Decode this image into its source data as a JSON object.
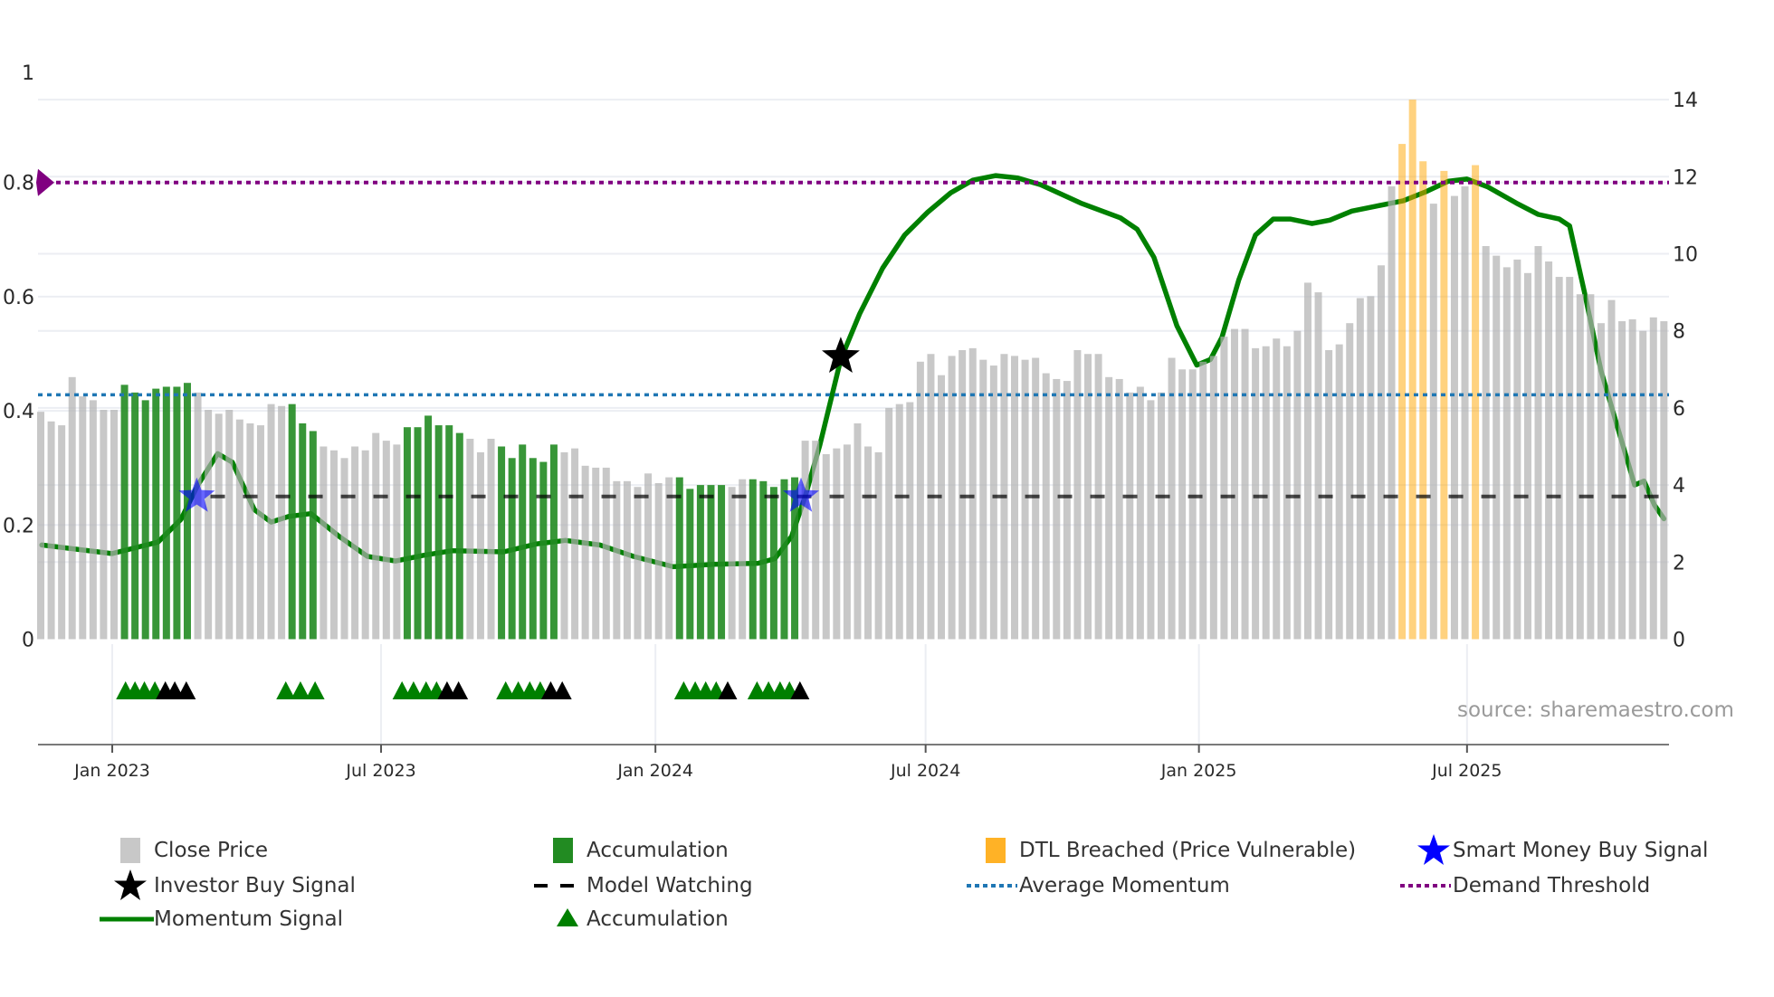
{
  "chart_data": {
    "type": "bar",
    "title": "",
    "source": "source: sharemaestro.com",
    "x_unit": "week index",
    "x_ticks": [
      {
        "label": "Jan 2023",
        "x": 6.83
      },
      {
        "label": "Jul 2023",
        "x": 32.5
      },
      {
        "label": "Jan 2024",
        "x": 58.7
      },
      {
        "label": "Jul 2024",
        "x": 84.5
      },
      {
        "label": "Jan 2025",
        "x": 110.6
      },
      {
        "label": "Jul 2025",
        "x": 136.2
      }
    ],
    "y_left": {
      "ylim": [
        0,
        1
      ],
      "ticks": [
        "0",
        "0.2",
        "0.4",
        "0.6",
        "0.8",
        "1"
      ],
      "tick_values": [
        0,
        0.2,
        0.4,
        0.6,
        0.8,
        1
      ]
    },
    "y_right": {
      "ylim": [
        0,
        14
      ],
      "ticks": [
        "0",
        "2",
        "4",
        "6",
        "8",
        "10",
        "12",
        "14"
      ],
      "tick_values": [
        0,
        2,
        4,
        6,
        8,
        10,
        12,
        14
      ]
    },
    "grid": true,
    "close_price": [
      5.9,
      5.65,
      5.55,
      6.8,
      6.3,
      6.2,
      5.95,
      5.95,
      6.6,
      6.4,
      6.2,
      6.5,
      6.55,
      6.55,
      6.65,
      6.4,
      5.95,
      5.85,
      5.95,
      5.7,
      5.6,
      5.55,
      6.1,
      6.05,
      6.1,
      5.6,
      5.4,
      5.0,
      4.9,
      4.7,
      5.0,
      4.9,
      5.35,
      5.15,
      5.05,
      5.5,
      5.5,
      5.8,
      5.55,
      5.55,
      5.35,
      5.2,
      4.85,
      5.2,
      5.0,
      4.7,
      5.05,
      4.7,
      4.6,
      5.05,
      4.85,
      4.95,
      4.5,
      4.45,
      4.45,
      4.1,
      4.1,
      3.95,
      4.3,
      4.05,
      4.2,
      4.2,
      3.9,
      4.0,
      4.0,
      4.0,
      3.95,
      4.15,
      4.15,
      4.1,
      3.95,
      4.15,
      4.2,
      5.15,
      5.15,
      4.8,
      4.95,
      5.05,
      5.6,
      5.0,
      4.85,
      6.0,
      6.1,
      6.15,
      7.2,
      7.4,
      6.85,
      7.35,
      7.5,
      7.55,
      7.25,
      7.1,
      7.4,
      7.35,
      7.25,
      7.3,
      6.9,
      6.75,
      6.7,
      7.5,
      7.4,
      7.4,
      6.8,
      6.75,
      6.4,
      6.55,
      6.2,
      6.4,
      7.3,
      7.0,
      7.0,
      7.2,
      7.35,
      7.85,
      8.05,
      8.05,
      7.55,
      7.6,
      7.8,
      7.6,
      8.0,
      9.25,
      9.0,
      7.5,
      7.65,
      8.2,
      8.85,
      8.9,
      9.7,
      11.75,
      12.85,
      14.0,
      12.4,
      11.3,
      12.15,
      11.5,
      11.75,
      12.3,
      10.2,
      9.95,
      9.65,
      9.85,
      9.5,
      10.2,
      9.8,
      9.4,
      9.4,
      8.95,
      8.95,
      8.2,
      8.8,
      8.25,
      8.3,
      8.0,
      8.35,
      8.25
    ],
    "accumulation_bars": [
      8,
      9,
      10,
      11,
      12,
      13,
      14,
      24,
      25,
      26,
      35,
      36,
      37,
      38,
      39,
      40,
      44,
      45,
      46,
      47,
      48,
      49,
      61,
      62,
      63,
      64,
      65,
      68,
      69,
      70,
      71,
      72
    ],
    "dtl_breached_bars": [
      130,
      131,
      132,
      134,
      137
    ],
    "momentum_signal": [
      [
        0.1,
        0.165
      ],
      [
        6.8,
        0.15
      ],
      [
        11.2,
        0.17
      ],
      [
        13.4,
        0.21
      ],
      [
        15.0,
        0.27
      ],
      [
        16.9,
        0.325
      ],
      [
        18.3,
        0.31
      ],
      [
        20.4,
        0.227
      ],
      [
        22.0,
        0.205
      ],
      [
        23.7,
        0.215
      ],
      [
        25.8,
        0.22
      ],
      [
        28.5,
        0.18
      ],
      [
        31.2,
        0.145
      ],
      [
        33.9,
        0.137
      ],
      [
        36.6,
        0.147
      ],
      [
        39.3,
        0.155
      ],
      [
        44.2,
        0.153
      ],
      [
        47.4,
        0.167
      ],
      [
        50.1,
        0.173
      ],
      [
        53.4,
        0.165
      ],
      [
        56.6,
        0.145
      ],
      [
        60.4,
        0.127
      ],
      [
        64.2,
        0.131
      ],
      [
        68.5,
        0.133
      ],
      [
        70.1,
        0.141
      ],
      [
        71.7,
        0.18
      ],
      [
        73.0,
        0.25
      ],
      [
        74.4,
        0.34
      ],
      [
        76.4,
        0.49
      ],
      [
        78.2,
        0.57
      ],
      [
        80.4,
        0.65
      ],
      [
        82.5,
        0.708
      ],
      [
        84.7,
        0.748
      ],
      [
        86.9,
        0.782
      ],
      [
        89.0,
        0.804
      ],
      [
        91.2,
        0.812
      ],
      [
        93.3,
        0.808
      ],
      [
        95.5,
        0.796
      ],
      [
        99.3,
        0.764
      ],
      [
        103.1,
        0.738
      ],
      [
        104.7,
        0.718
      ],
      [
        106.3,
        0.669
      ],
      [
        108.5,
        0.549
      ],
      [
        110.4,
        0.48
      ],
      [
        111.7,
        0.49
      ],
      [
        112.8,
        0.529
      ],
      [
        114.4,
        0.629
      ],
      [
        116.0,
        0.708
      ],
      [
        117.7,
        0.736
      ],
      [
        119.3,
        0.736
      ],
      [
        121.4,
        0.728
      ],
      [
        123.1,
        0.734
      ],
      [
        125.2,
        0.75
      ],
      [
        127.4,
        0.758
      ],
      [
        130.1,
        0.768
      ],
      [
        132.3,
        0.784
      ],
      [
        134.4,
        0.802
      ],
      [
        136.2,
        0.806
      ],
      [
        138.2,
        0.792
      ],
      [
        140.9,
        0.764
      ],
      [
        143.0,
        0.744
      ],
      [
        145.0,
        0.736
      ],
      [
        146.0,
        0.724
      ],
      [
        147.4,
        0.609
      ],
      [
        149.0,
        0.47
      ],
      [
        150.6,
        0.37
      ],
      [
        152.2,
        0.27
      ],
      [
        153.1,
        0.277
      ],
      [
        154.1,
        0.235
      ],
      [
        155.0,
        0.211
      ]
    ],
    "average_momentum": 0.428,
    "demand_threshold": 0.8,
    "model_watching": {
      "value": 0.25,
      "start": 15.0
    },
    "smart_money_buy_signals": [
      [
        14.9,
        0.25
      ],
      [
        72.6,
        0.25
      ]
    ],
    "investor_buy_signals": [
      [
        76.4,
        0.495
      ]
    ],
    "accumulation_markers": {
      "green": [
        8.1,
        9.0,
        9.9,
        10.9,
        23.4,
        24.8,
        26.2,
        34.5,
        35.6,
        36.8,
        37.8,
        44.4,
        45.6,
        46.7,
        47.7,
        61.4,
        62.5,
        63.5,
        64.5,
        68.4,
        69.5,
        70.6,
        71.5
      ],
      "black": [
        11.9,
        12.8,
        13.9,
        38.8,
        39.9,
        48.7,
        49.8,
        65.6,
        72.5
      ]
    },
    "colors": {
      "close_price": "#b0b0b0",
      "accumulation": "#228b22",
      "dtl_breached": "#ffa500",
      "momentum": "#008000",
      "average_momentum": "#1f77b4",
      "demand_threshold": "#800080",
      "model_watching": "#000000",
      "smart_money": "#0000ff",
      "investor": "#000000"
    },
    "legend": [
      {
        "label": "Close Price",
        "icon": "gray-square"
      },
      {
        "label": "Accumulation",
        "icon": "green-square"
      },
      {
        "label": "DTL Breached (Price Vulnerable)",
        "icon": "orange-square"
      },
      {
        "label": "Smart Money Buy Signal",
        "icon": "blue-star"
      },
      {
        "label": "Investor Buy Signal",
        "icon": "black-star"
      },
      {
        "label": "Model Watching",
        "icon": "black-dash"
      },
      {
        "label": "Average Momentum",
        "icon": "blue-dotted"
      },
      {
        "label": "Demand Threshold",
        "icon": "purple-dotted"
      },
      {
        "label": "Momentum Signal",
        "icon": "green-line"
      },
      {
        "label": "Accumulation",
        "icon": "green-triangle"
      }
    ]
  }
}
